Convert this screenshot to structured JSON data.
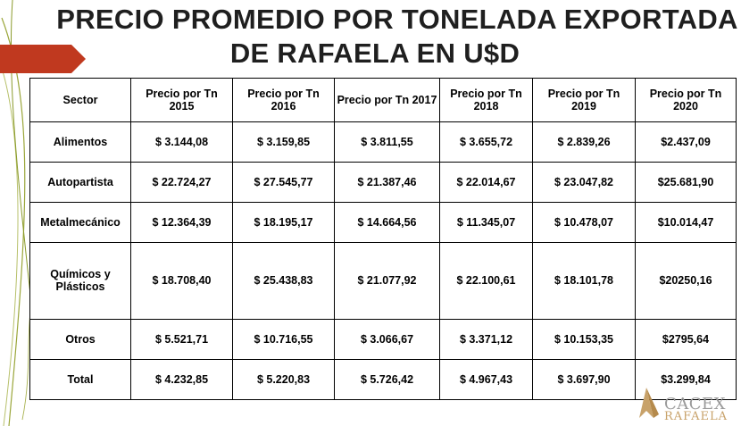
{
  "slide": {
    "title_line1": "PRECIO PROMEDIO POR TONELADA EXPORTADA",
    "title_line2": "DE RAFAELA EN U$D",
    "accent_color": "#c0391f",
    "vine_color": "#8a9a2a"
  },
  "table": {
    "headers": [
      "Sector",
      "Precio por Tn 2015",
      "Precio por Tn 2016",
      "Precio por Tn 2017",
      "Precio por Tn 2018",
      "Precio por Tn 2019",
      "Precio por Tn 2020"
    ],
    "rows": [
      [
        "Alimentos",
        "$ 3.144,08",
        "$ 3.159,85",
        "$ 3.811,55",
        "$ 3.655,72",
        "$ 2.839,26",
        "$2.437,09"
      ],
      [
        "Autopartista",
        "$ 22.724,27",
        "$ 27.545,77",
        "$ 21.387,46",
        "$ 22.014,67",
        "$ 23.047,82",
        "$25.681,90"
      ],
      [
        "Metalmecánico",
        "$ 12.364,39",
        "$ 18.195,17",
        "$ 14.664,56",
        "$ 11.345,07",
        "$ 10.478,07",
        "$10.014,47"
      ],
      [
        "Químicos y Plásticos",
        "$ 18.708,40",
        "$ 25.438,83",
        "$ 21.077,92",
        "$ 22.100,61",
        "$ 18.101,78",
        "$20250,16"
      ],
      [
        "Otros",
        "$ 5.521,71",
        "$ 10.716,55",
        "$ 3.066,67",
        "$ 3.371,12",
        "$ 10.153,35",
        "$2795,64"
      ],
      [
        "Total",
        "$ 4.232,85",
        "$ 5.220,83",
        "$ 5.726,42",
        "$ 4.967,43",
        "$ 3.697,90",
        "$3.299,84"
      ]
    ]
  },
  "logo": {
    "line1": "CACEX",
    "line2": "RAFAELA",
    "icon": "cacex-arrow-logo"
  }
}
